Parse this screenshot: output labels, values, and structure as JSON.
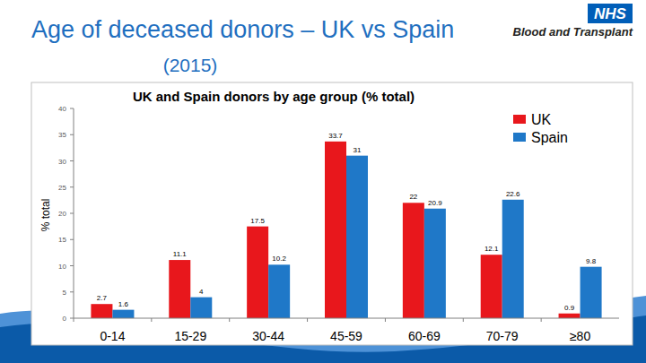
{
  "slide": {
    "title": "Age of deceased donors – UK vs Spain",
    "subtitle": "(2015)",
    "logo": "NHS",
    "logo_subtitle": "Blood and Transplant"
  },
  "chart_data": {
    "type": "bar",
    "title": "UK and Spain donors by age group (% total)",
    "y_label": "% total",
    "categories": [
      "0-14",
      "15-29",
      "30-44",
      "45-59",
      "60-69",
      "70-79",
      "≥80"
    ],
    "series": [
      {
        "name": "UK",
        "color": "#e8171c",
        "values": [
          2.7,
          11.1,
          17.5,
          33.7,
          22,
          12.1,
          0.9
        ]
      },
      {
        "name": "Spain",
        "color": "#1f78c8",
        "values": [
          1.6,
          4,
          10.2,
          31,
          20.9,
          22.6,
          9.8
        ]
      }
    ],
    "ylim": [
      0,
      40
    ],
    "yticks": [
      0,
      5,
      10,
      15,
      20,
      25,
      30,
      35,
      40
    ],
    "grid": false,
    "legend": "top-right",
    "data_labels": true
  }
}
